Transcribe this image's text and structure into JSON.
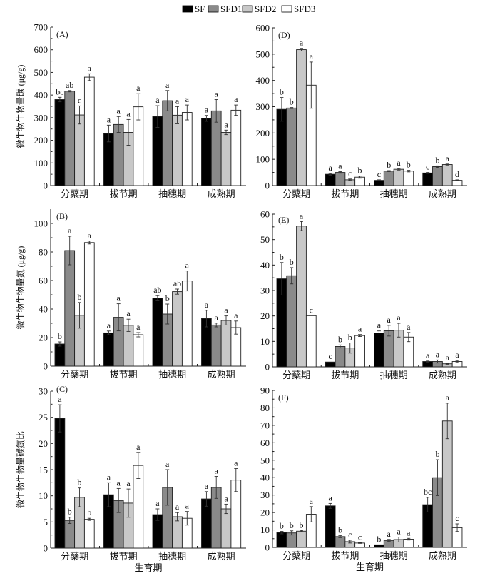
{
  "legend": [
    {
      "name": "SF",
      "color": "#000000"
    },
    {
      "name": "SFD1",
      "color": "#8a8a8a"
    },
    {
      "name": "SFD2",
      "color": "#c8c8c8"
    },
    {
      "name": "SFD3",
      "color": "#ffffff"
    }
  ],
  "chart_data": [
    {
      "type": "bar",
      "panel": "(A)",
      "ylabel": "微生物生物量碳 (μg/g)",
      "xlabel": "",
      "categories": [
        "分蘖期",
        "拔节期",
        "抽穗期",
        "成熟期"
      ],
      "ylim": [
        0,
        700
      ],
      "yticks": [
        0,
        100,
        200,
        300,
        400,
        500,
        600,
        700
      ],
      "series": [
        {
          "name": "SF",
          "values": [
            380,
            230,
            305,
            297
          ],
          "errors": [
            10,
            37,
            48,
            13
          ],
          "letters": [
            "bc",
            "a",
            "a",
            "a"
          ]
        },
        {
          "name": "SFD1",
          "values": [
            417,
            270,
            375,
            330
          ],
          "errors": [
            3,
            35,
            45,
            50
          ],
          "letters": [
            "ab",
            "a",
            "a",
            "a"
          ]
        },
        {
          "name": "SFD2",
          "values": [
            312,
            235,
            311,
            235
          ],
          "errors": [
            40,
            57,
            38,
            10
          ],
          "letters": [
            "c",
            "a",
            "a",
            "a"
          ]
        },
        {
          "name": "SFD3",
          "values": [
            479,
            348,
            323,
            333
          ],
          "errors": [
            15,
            58,
            33,
            23
          ],
          "letters": [
            "a",
            "a",
            "a",
            "a"
          ]
        }
      ]
    },
    {
      "type": "bar",
      "panel": "(D)",
      "ylabel": "",
      "xlabel": "",
      "categories": [
        "分蘖期",
        "拔节期",
        "抽穗期",
        "成熟期"
      ],
      "ylim": [
        0,
        600
      ],
      "yticks": [
        0,
        100,
        200,
        300,
        400,
        500,
        600
      ],
      "series": [
        {
          "name": "SF",
          "values": [
            290,
            43,
            20,
            48
          ],
          "errors": [
            45,
            3,
            2,
            2
          ],
          "letters": [
            "b",
            "a",
            "c",
            "c"
          ]
        },
        {
          "name": "SFD1",
          "values": [
            295,
            50,
            55,
            72
          ],
          "errors": [
            2,
            3,
            2,
            3
          ],
          "letters": [
            "b",
            "a",
            "b",
            "b"
          ]
        },
        {
          "name": "SFD2",
          "values": [
            517,
            22,
            62,
            80
          ],
          "errors": [
            5,
            3,
            3,
            2
          ],
          "letters": [
            "a",
            "c",
            "a",
            "a"
          ]
        },
        {
          "name": "SFD3",
          "values": [
            382,
            32,
            55,
            20
          ],
          "errors": [
            88,
            4,
            3,
            2
          ],
          "letters": [
            "a",
            "b",
            "b",
            "d"
          ]
        }
      ]
    },
    {
      "type": "bar",
      "panel": "(B)",
      "ylabel": "微生物生物量氮 (μg/g)",
      "xlabel": "",
      "categories": [
        "分蘖期",
        "拔节期",
        "抽穗期",
        "成熟期"
      ],
      "ylim": [
        0,
        110
      ],
      "yticks": [
        0,
        20,
        40,
        60,
        80,
        100
      ],
      "series": [
        {
          "name": "SF",
          "values": [
            15.5,
            23.3,
            47.6,
            33.3
          ],
          "errors": [
            1.5,
            1.3,
            1.8,
            5.8
          ],
          "letters": [
            "b",
            "a",
            "ab",
            "a"
          ]
        },
        {
          "name": "SFD1",
          "values": [
            81,
            34.2,
            36.5,
            28.8
          ],
          "errors": [
            10,
            9.5,
            7,
            1.3
          ],
          "letters": [
            "a",
            "a",
            "b",
            "a"
          ]
        },
        {
          "name": "SFD2",
          "values": [
            35.6,
            28.6,
            52.2,
            32
          ],
          "errors": [
            9,
            4.3,
            1.8,
            3.2
          ],
          "letters": [
            "b",
            "a",
            "ab",
            "a"
          ]
        },
        {
          "name": "SFD3",
          "values": [
            86.6,
            22,
            59.7,
            27
          ],
          "errors": [
            1,
            1.5,
            7,
            4.6
          ],
          "letters": [
            "a",
            "a",
            "a",
            "a"
          ]
        }
      ]
    },
    {
      "type": "bar",
      "panel": "(E)",
      "ylabel": "",
      "xlabel": "",
      "categories": [
        "分蘖期",
        "拔节期",
        "抽穗期",
        "成熟期"
      ],
      "ylim": [
        0,
        60
      ],
      "yticks": [
        0,
        10,
        20,
        30,
        40,
        50,
        60
      ],
      "series": [
        {
          "name": "SF",
          "values": [
            34.6,
            1.9,
            13.3,
            2.1
          ],
          "errors": [
            6.4,
            0,
            0.8,
            0.2
          ],
          "letters": [
            "b",
            "c",
            "a",
            "a"
          ]
        },
        {
          "name": "SFD1",
          "values": [
            35.8,
            8,
            14.2,
            2.1
          ],
          "errors": [
            3.2,
            0.6,
            2.1,
            0.6
          ],
          "letters": [
            "b",
            "b",
            "a",
            "a"
          ]
        },
        {
          "name": "SFD2",
          "values": [
            55.3,
            7.4,
            14.4,
            1.2
          ],
          "errors": [
            1.8,
            2,
            2.7,
            0.2
          ],
          "letters": [
            "a",
            "b",
            "a",
            "a"
          ]
        },
        {
          "name": "SFD3",
          "values": [
            20.1,
            12.3,
            11.7,
            2.1
          ],
          "errors": [
            0,
            0.4,
            1.8,
            0.4
          ],
          "letters": [
            "c",
            "a",
            "a",
            "a"
          ]
        }
      ]
    },
    {
      "type": "bar",
      "panel": "(C)",
      "ylabel": "微生物生物量碳氮比",
      "xlabel": "生育期",
      "categories": [
        "分蘖期",
        "拔节期",
        "抽穗期",
        "成熟期"
      ],
      "ylim": [
        0,
        30
      ],
      "yticks": [
        0,
        5,
        10,
        15,
        20,
        25,
        30
      ],
      "series": [
        {
          "name": "SF",
          "values": [
            24.8,
            10.2,
            6.4,
            9.4
          ],
          "errors": [
            2.6,
            2.3,
            1.1,
            1.4
          ],
          "letters": [
            "a",
            "a",
            "a",
            "a"
          ]
        },
        {
          "name": "SFD1",
          "values": [
            5.3,
            9.1,
            11.6,
            11.6
          ],
          "errors": [
            0.6,
            2.3,
            3.4,
            2.1
          ],
          "letters": [
            "b",
            "a",
            "a",
            "a"
          ]
        },
        {
          "name": "SFD2",
          "values": [
            9.7,
            8.6,
            6,
            7.5
          ],
          "errors": [
            1.8,
            2.7,
            0.8,
            0.9
          ],
          "letters": [
            "b",
            "a",
            "a",
            "a"
          ]
        },
        {
          "name": "SFD3",
          "values": [
            5.5,
            15.8,
            5.7,
            13
          ],
          "errors": [
            0.2,
            2.5,
            1.3,
            2.2
          ],
          "letters": [
            "b",
            "a",
            "a",
            "a"
          ]
        }
      ]
    },
    {
      "type": "bar",
      "panel": "(F)",
      "ylabel": "",
      "xlabel": "生育期",
      "categories": [
        "分蘖期",
        "拔节期",
        "抽穗期",
        "成熟期"
      ],
      "ylim": [
        0,
        90
      ],
      "yticks": [
        0,
        10,
        20,
        30,
        40,
        50,
        60,
        70,
        80,
        90
      ],
      "series": [
        {
          "name": "SF",
          "values": [
            8.5,
            23.8,
            1.5,
            24.5
          ],
          "errors": [
            0.7,
            1.4,
            0,
            4.2
          ],
          "letters": [
            "b",
            "a",
            "b",
            "bc"
          ]
        },
        {
          "name": "SFD1",
          "values": [
            8.3,
            6.2,
            4,
            40
          ],
          "errors": [
            1.2,
            0.6,
            0.6,
            10.3
          ],
          "letters": [
            "b",
            "b",
            "a",
            "b"
          ]
        },
        {
          "name": "SFD2",
          "values": [
            9.3,
            3.3,
            4.5,
            72.5
          ],
          "errors": [
            0.4,
            0.8,
            1.4,
            10.2
          ],
          "letters": [
            "b",
            "c",
            "a",
            "a"
          ]
        },
        {
          "name": "SFD3",
          "values": [
            19,
            2.5,
            4.7,
            11.3
          ],
          "errors": [
            4.4,
            0.2,
            0.5,
            2.2
          ],
          "letters": [
            "a",
            "c",
            "a",
            "c"
          ]
        }
      ]
    }
  ]
}
